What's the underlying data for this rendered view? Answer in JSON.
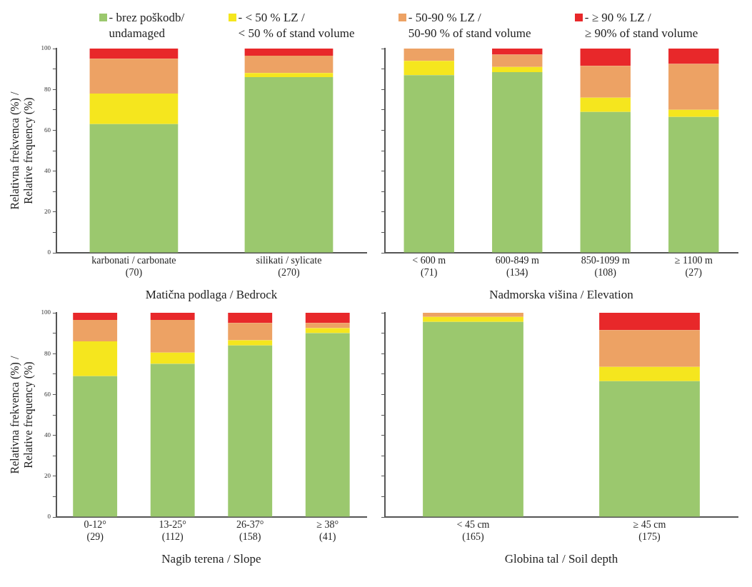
{
  "chart_data": [
    {
      "type": "bar",
      "stacked": true,
      "legend": "top",
      "categories": [
        "karbonati / carbonate\n(70)",
        "silikati / sylicate\n(270)"
      ],
      "xlabel": "Matična podlaga / Bedrock",
      "ylabel": "Relativna frekvenca (%) /\nRelative frequency (%)",
      "ylim": [
        0,
        100
      ],
      "yticks": [
        0,
        {
          "value": 10,
          "label": null
        },
        20,
        {
          "value": 30,
          "label": null
        },
        40,
        {
          "value": 50,
          "label": null
        },
        60,
        {
          "value": 70,
          "label": null
        },
        80,
        {
          "value": 90,
          "label": null
        },
        100
      ],
      "grid": false,
      "series": [
        {
          "name": "- brez poškodb/\nundamaged",
          "color": "#9bc86e",
          "values": [
            63,
            86
          ]
        },
        {
          "name": "- < 50 % LZ /\n< 50 % of stand volume",
          "color": "#f5e61e",
          "values": [
            15,
            2
          ]
        },
        {
          "name": "- 50-90 % LZ /\n50-90 % of stand volume",
          "color": "#eda264",
          "values": [
            17,
            8.5
          ]
        },
        {
          "name": "- ≥ 90 % LZ /\n≥ 90% of stand volume",
          "color": "#e8282a",
          "values": [
            5,
            3.5
          ]
        }
      ]
    },
    {
      "type": "bar",
      "stacked": true,
      "tick_labels": "x",
      "categories": [
        "< 600 m\n(71)",
        "600-849 m\n(134)",
        "850-1099 m\n(108)",
        "≥ 1100 m\n(27)"
      ],
      "xlabel": "Nadmorska višina / Elevation",
      "ylim": [
        0,
        100
      ],
      "yticks": [
        0,
        {
          "value": 10,
          "label": null
        },
        20,
        {
          "value": 30,
          "label": null
        },
        40,
        {
          "value": 50,
          "label": null
        },
        60,
        {
          "value": 70,
          "label": null
        },
        80,
        {
          "value": 90,
          "label": null
        },
        100
      ],
      "grid": false,
      "series": [
        {
          "color": "#9bc86e",
          "values": [
            87,
            88.5,
            69,
            66.5
          ]
        },
        {
          "color": "#f5e61e",
          "values": [
            7,
            2.5,
            7,
            3.5
          ]
        },
        {
          "color": "#eda264",
          "values": [
            6,
            6,
            15.5,
            22.5
          ]
        },
        {
          "color": "#e8282a",
          "values": [
            0,
            3,
            8.5,
            7.5
          ]
        }
      ]
    },
    {
      "type": "bar",
      "stacked": true,
      "categories": [
        "0-12°\n(29)",
        "13-25°\n(112)",
        "26-37°\n(158)",
        "≥ 38°\n(41)"
      ],
      "xlabel": "Nagib terena / Slope",
      "ylabel": "Relativna frekvenca (%) /\nRelative frequency (%)",
      "ylim": [
        0,
        100
      ],
      "yticks": [
        0,
        {
          "value": 10,
          "label": null
        },
        20,
        {
          "value": 30,
          "label": null
        },
        40,
        {
          "value": 50,
          "label": null
        },
        60,
        {
          "value": 70,
          "label": null
        },
        80,
        {
          "value": 90,
          "label": null
        },
        100
      ],
      "grid": false,
      "series": [
        {
          "color": "#9bc86e",
          "values": [
            69,
            75,
            84,
            90
          ]
        },
        {
          "color": "#f5e61e",
          "values": [
            17,
            5.5,
            2.5,
            2.5
          ]
        },
        {
          "color": "#eda264",
          "values": [
            10.5,
            16,
            8.5,
            2.5
          ]
        },
        {
          "color": "#e8282a",
          "values": [
            3.5,
            3.5,
            5,
            5
          ]
        }
      ]
    },
    {
      "type": "bar",
      "stacked": true,
      "tick_labels": "x",
      "categories": [
        "< 45 cm\n(165)",
        "≥ 45 cm\n(175)"
      ],
      "xlabel": "Globina tal / Soil depth",
      "ylim": [
        0,
        100
      ],
      "yticks": [
        0,
        {
          "value": 10,
          "label": null
        },
        20,
        {
          "value": 30,
          "label": null
        },
        40,
        {
          "value": 50,
          "label": null
        },
        60,
        {
          "value": 70,
          "label": null
        },
        80,
        {
          "value": 90,
          "label": null
        },
        100
      ],
      "grid": false,
      "series": [
        {
          "color": "#9bc86e",
          "values": [
            95.5,
            66.5
          ]
        },
        {
          "color": "#f5e61e",
          "values": [
            2.5,
            7
          ]
        },
        {
          "color": "#eda264",
          "values": [
            2,
            18
          ]
        },
        {
          "color": "#e8282a",
          "values": [
            0,
            8.5
          ]
        }
      ]
    }
  ]
}
